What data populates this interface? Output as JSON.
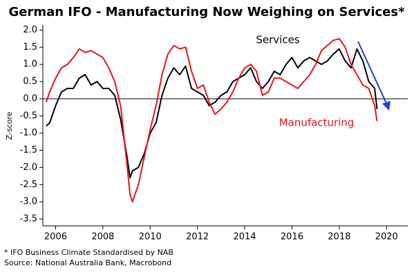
{
  "chart_data": {
    "type": "line",
    "title": "German IFO - Manufacturing Now Weighing on Services*",
    "y_label": "Z-score",
    "footnotes": [
      "* IFO Business Climate Standardised by NAB",
      "Source: National Australia Bank, Macrobond"
    ],
    "x": [
      2005.6,
      2005.75,
      2006,
      2006.25,
      2006.5,
      2006.75,
      2007,
      2007.25,
      2007.5,
      2007.75,
      2008,
      2008.25,
      2008.5,
      2008.75,
      2009,
      2009.15,
      2009.25,
      2009.5,
      2009.75,
      2010,
      2010.25,
      2010.5,
      2010.75,
      2011,
      2011.25,
      2011.5,
      2011.75,
      2012,
      2012.25,
      2012.5,
      2012.75,
      2013,
      2013.25,
      2013.5,
      2013.75,
      2014,
      2014.25,
      2014.5,
      2014.75,
      2015,
      2015.25,
      2015.5,
      2015.75,
      2016,
      2016.25,
      2016.5,
      2016.75,
      2017,
      2017.25,
      2017.5,
      2017.75,
      2018,
      2018.25,
      2018.5,
      2018.75,
      2019,
      2019.25,
      2019.5,
      2019.6
    ],
    "series": [
      {
        "name": "Services",
        "color": "#000000",
        "values": [
          -0.8,
          -0.7,
          -0.2,
          0.2,
          0.3,
          0.3,
          0.6,
          0.7,
          0.4,
          0.5,
          0.3,
          0.3,
          0.1,
          -0.6,
          -1.6,
          -2.3,
          -2.1,
          -2.0,
          -1.6,
          -1.0,
          -0.7,
          0.1,
          0.6,
          0.9,
          0.7,
          0.95,
          0.3,
          0.2,
          0.1,
          -0.2,
          -0.1,
          0.1,
          0.2,
          0.5,
          0.6,
          0.7,
          0.9,
          0.5,
          0.3,
          0.5,
          0.8,
          0.7,
          1.0,
          1.2,
          0.9,
          1.1,
          1.2,
          1.1,
          1.0,
          1.1,
          1.3,
          1.45,
          1.1,
          0.9,
          1.45,
          1.1,
          0.5,
          0.3,
          -0.3
        ]
      },
      {
        "name": "Manufacturing",
        "color": "#e8141b",
        "values": [
          -0.1,
          0.2,
          0.6,
          0.9,
          1.0,
          1.2,
          1.45,
          1.35,
          1.4,
          1.3,
          1.2,
          0.9,
          0.5,
          -0.2,
          -1.8,
          -2.8,
          -3.0,
          -2.5,
          -1.7,
          -0.9,
          -0.2,
          0.7,
          1.3,
          1.55,
          1.45,
          1.5,
          0.8,
          0.3,
          0.4,
          -0.1,
          -0.45,
          -0.3,
          -0.1,
          0.2,
          0.6,
          0.9,
          1.0,
          0.8,
          0.1,
          0.2,
          0.6,
          0.6,
          0.5,
          0.4,
          0.3,
          0.5,
          0.7,
          1.0,
          1.4,
          1.55,
          1.7,
          1.75,
          1.5,
          1.0,
          0.7,
          0.4,
          0.3,
          -0.2,
          -0.65
        ]
      }
    ],
    "xlim": [
      2005.46,
      2020.9
    ],
    "xticks": [
      2006,
      2008,
      2010,
      2012,
      2014,
      2016,
      2018,
      2020
    ],
    "ylim": [
      -3.7,
      2.15
    ],
    "yticks": [
      {
        "value": 2,
        "label": "2.0"
      },
      1.5,
      {
        "value": 1,
        "label": "1.0"
      },
      0.5,
      {
        "value": 0,
        "label": "0.0"
      },
      -0.5,
      {
        "value": -1,
        "label": "-1.0"
      },
      -1.5,
      {
        "value": -2,
        "label": "-2.0"
      },
      -2.5,
      {
        "value": -3,
        "label": "-3.0"
      },
      -3.5
    ],
    "reference_line": 0
  }
}
